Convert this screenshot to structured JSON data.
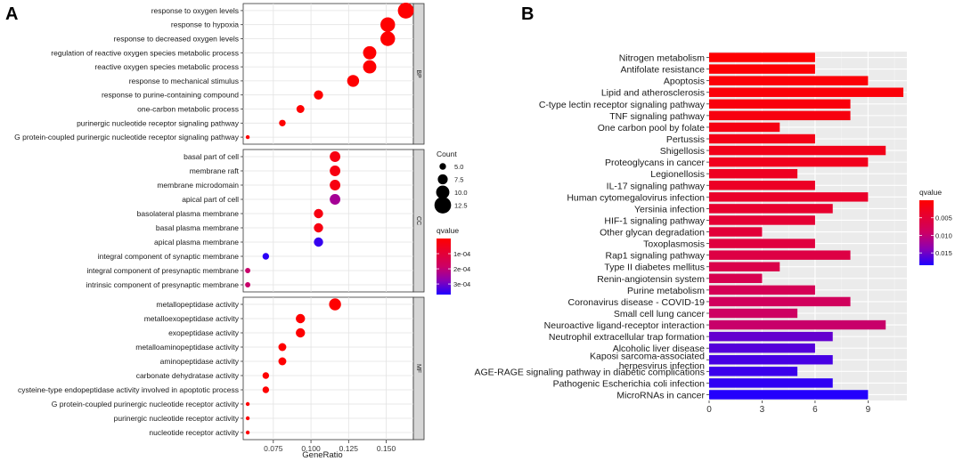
{
  "chart_data": [
    {
      "type": "scatter",
      "panel_label": "A",
      "xlabel": "GeneRatio",
      "xlim": [
        0.055,
        0.168
      ],
      "xticks": [
        "0.075",
        "0.100",
        "0.125",
        "0.150"
      ],
      "facets": [
        {
          "name": "BP",
          "terms": [
            {
              "label": "response to oxygen levels",
              "x": 0.163,
              "count": 12,
              "q": 2e-06
            },
            {
              "label": "response to hypoxia",
              "x": 0.151,
              "count": 11,
              "q": 2e-06
            },
            {
              "label": "response to decreased oxygen levels",
              "x": 0.151,
              "count": 11,
              "q": 2e-06
            },
            {
              "label": "regulation of reactive oxygen species metabolic process",
              "x": 0.139,
              "count": 10,
              "q": 2e-06
            },
            {
              "label": "reactive oxygen species metabolic process",
              "x": 0.139,
              "count": 10,
              "q": 2e-06
            },
            {
              "label": "response to mechanical stimulus",
              "x": 0.128,
              "count": 9,
              "q": 2e-06
            },
            {
              "label": "response to purine-containing compound",
              "x": 0.105,
              "count": 7,
              "q": 2e-06
            },
            {
              "label": "one-carbon metabolic process",
              "x": 0.093,
              "count": 6,
              "q": 2e-06
            },
            {
              "label": "purinergic nucleotide receptor signaling pathway",
              "x": 0.081,
              "count": 5,
              "q": 2e-06
            },
            {
              "label": "G protein-coupled purinergic nucleotide receptor signaling pathway",
              "x": 0.058,
              "count": 3,
              "q": 2e-06
            }
          ]
        },
        {
          "name": "CC",
          "terms": [
            {
              "label": "basal part of cell",
              "x": 0.116,
              "count": 8,
              "q": 3e-05
            },
            {
              "label": "membrane raft",
              "x": 0.116,
              "count": 8,
              "q": 3e-05
            },
            {
              "label": "membrane microdomain",
              "x": 0.116,
              "count": 8,
              "q": 3e-05
            },
            {
              "label": "apical part of cell",
              "x": 0.116,
              "count": 8,
              "q": 0.00024
            },
            {
              "label": "basolateral plasma membrane",
              "x": 0.105,
              "count": 7,
              "q": 3e-05
            },
            {
              "label": "basal plasma membrane",
              "x": 0.105,
              "count": 7,
              "q": 3e-05
            },
            {
              "label": "apical plasma membrane",
              "x": 0.105,
              "count": 7,
              "q": 0.00035
            },
            {
              "label": "integral component of synaptic membrane",
              "x": 0.07,
              "count": 5,
              "q": 0.00036
            },
            {
              "label": "integral component of presynaptic membrane",
              "x": 0.058,
              "count": 4,
              "q": 0.00019
            },
            {
              "label": "intrinsic component of presynaptic membrane",
              "x": 0.058,
              "count": 4,
              "q": 0.00019
            }
          ]
        },
        {
          "name": "MF",
          "terms": [
            {
              "label": "metallopeptidase activity",
              "x": 0.116,
              "count": 9,
              "q": 2e-06
            },
            {
              "label": "metalloexopeptidase activity",
              "x": 0.093,
              "count": 7,
              "q": 2e-06
            },
            {
              "label": "exopeptidase activity",
              "x": 0.093,
              "count": 7,
              "q": 2e-06
            },
            {
              "label": "metalloaminopeptidase activity",
              "x": 0.081,
              "count": 6,
              "q": 2e-06
            },
            {
              "label": "aminopeptidase activity",
              "x": 0.081,
              "count": 6,
              "q": 2e-06
            },
            {
              "label": "carbonate dehydratase activity",
              "x": 0.07,
              "count": 5,
              "q": 2e-06
            },
            {
              "label": "cysteine-type endopeptidase activity involved in apoptotic process",
              "x": 0.07,
              "count": 5,
              "q": 2e-06
            },
            {
              "label": "G protein-coupled purinergic nucleotide receptor activity",
              "x": 0.058,
              "count": 3,
              "q": 2e-06
            },
            {
              "label": "purinergic nucleotide receptor activity",
              "x": 0.058,
              "count": 3,
              "q": 2e-06
            },
            {
              "label": "nucleotide receptor activity",
              "x": 0.058,
              "count": 3,
              "q": 2e-06
            }
          ]
        }
      ],
      "legend_count": {
        "title": "Count",
        "values": [
          "5.0",
          "7.5",
          "10.0",
          "12.5"
        ],
        "nums": [
          5,
          7.5,
          10,
          12.5
        ]
      },
      "legend_q": {
        "title": "qvalue",
        "range": [
          0,
          0.00037
        ],
        "ticks": [
          "1e-04",
          "2e-04",
          "3e-04"
        ],
        "tickvals": [
          0.0001,
          0.0002,
          0.0003
        ]
      }
    },
    {
      "type": "bar",
      "orientation": "horizontal",
      "panel_label": "B",
      "xlim": [
        0,
        11.2
      ],
      "xticks": [
        "0",
        "3",
        "6",
        "9"
      ],
      "categories": [
        "Nitrogen metabolism",
        "Antifolate resistance",
        "Apoptosis",
        "Lipid and atherosclerosis",
        "C-type lectin receptor signaling pathway",
        "TNF signaling pathway",
        "One carbon pool by folate",
        "Pertussis",
        "Shigellosis",
        "Proteoglycans in cancer",
        "Legionellosis",
        "IL-17 signaling pathway",
        "Human cytomegalovirus infection",
        "Yersinia infection",
        "HIF-1 signaling pathway",
        "Other glycan degradation",
        "Toxoplasmosis",
        "Rap1 signaling pathway",
        "Type II diabetes mellitus",
        "Renin-angiotensin system",
        "Purine metabolism",
        "Coronavirus disease - COVID-19",
        "Small cell lung cancer",
        "Neuroactive ligand-receptor interaction",
        "Neutrophil extracellular trap formation",
        "Alcoholic liver disease",
        "Kaposi sarcoma-associated herpesvirus infection",
        "AGE-RAGE signaling pathway in diabetic complications",
        "Pathogenic Escherichia coli infection",
        "MicroRNAs in cancer"
      ],
      "values": [
        6,
        6,
        9,
        11,
        8,
        8,
        4,
        6,
        10,
        9,
        5,
        6,
        9,
        7,
        6,
        3,
        6,
        8,
        4,
        3,
        6,
        8,
        5,
        10,
        7,
        6,
        7,
        5,
        7,
        9
      ],
      "qvalues": [
        0.0002,
        0.0004,
        0.0006,
        0.0008,
        0.0011,
        0.0014,
        0.0017,
        0.002,
        0.0023,
        0.0026,
        0.003,
        0.0034,
        0.0038,
        0.0042,
        0.0047,
        0.0052,
        0.0057,
        0.0062,
        0.0067,
        0.0072,
        0.0077,
        0.0083,
        0.0089,
        0.0095,
        0.0155,
        0.0162,
        0.0168,
        0.0173,
        0.0178,
        0.0183
      ],
      "legend_q": {
        "title": "qvalue",
        "range": [
          0,
          0.0185
        ],
        "ticks": [
          "0.005",
          "0.010",
          "0.015"
        ],
        "tickvals": [
          0.005,
          0.01,
          0.015
        ]
      }
    }
  ]
}
